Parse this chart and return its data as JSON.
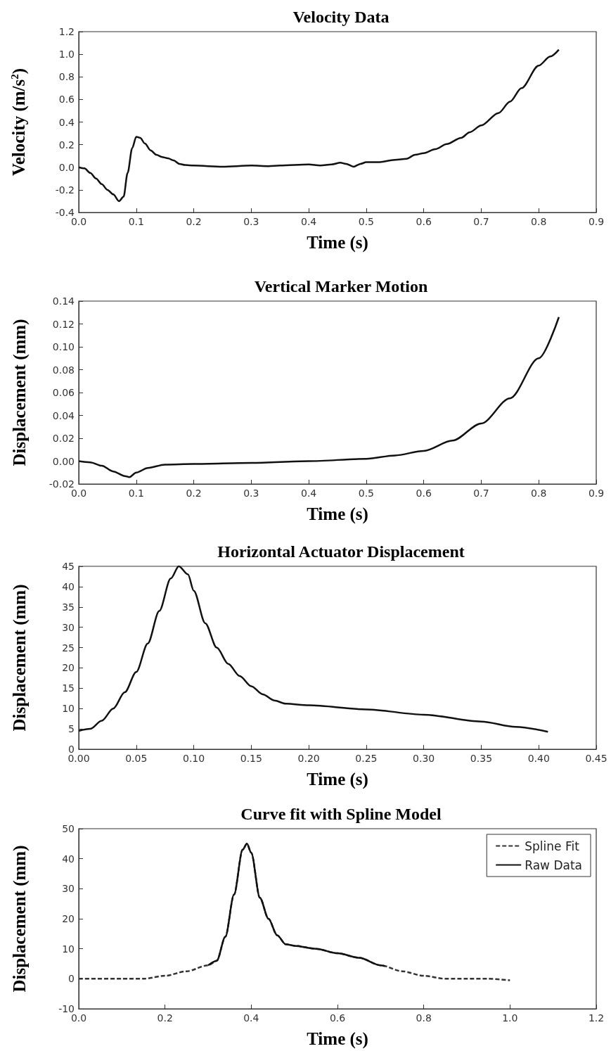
{
  "chart_data": [
    {
      "type": "line",
      "title": "Velocity Data",
      "xlabel": "Time (s)",
      "ylabel": "Velocity (m/s$^{2}$)",
      "color": "#111111",
      "line_style": "solid",
      "marker": "none",
      "x": [
        0,
        0.01,
        0.02,
        0.03,
        0.04,
        0.05,
        0.06,
        0.07,
        0.078,
        0.085,
        0.093,
        0.1,
        0.107,
        0.115,
        0.125,
        0.135,
        0.145,
        0.155,
        0.165,
        0.175,
        0.185,
        0.2,
        0.25,
        0.3,
        0.33,
        0.35,
        0.4,
        0.42,
        0.44,
        0.455,
        0.465,
        0.478,
        0.49,
        0.5,
        0.52,
        0.55,
        0.57,
        0.585,
        0.6,
        0.62,
        0.64,
        0.665,
        0.68,
        0.7,
        0.73,
        0.75,
        0.77,
        0.8,
        0.82,
        0.835
      ],
      "values": [
        0,
        -0.01,
        -0.05,
        -0.1,
        -0.15,
        -0.2,
        -0.24,
        -0.3,
        -0.26,
        -0.05,
        0.17,
        0.27,
        0.26,
        0.21,
        0.15,
        0.11,
        0.09,
        0.08,
        0.06,
        0.03,
        0.02,
        0.015,
        0.005,
        0.015,
        0.01,
        0.015,
        0.025,
        0.015,
        0.025,
        0.04,
        0.03,
        0.005,
        0.03,
        0.045,
        0.045,
        0.065,
        0.075,
        0.11,
        0.125,
        0.16,
        0.205,
        0.26,
        0.31,
        0.37,
        0.48,
        0.58,
        0.7,
        0.9,
        0.98,
        1.04
      ],
      "xlim": [
        0,
        0.9
      ],
      "xticks": [
        {
          "value": 0,
          "label": "0.0"
        },
        0.1,
        0.2,
        0.3,
        0.4,
        0.5,
        0.6,
        0.7,
        0.8,
        0.9
      ],
      "ylim": [
        -0.4,
        1.2
      ],
      "yticks": [
        -0.4,
        -0.2,
        {
          "value": 0,
          "label": "0.0"
        },
        0.2,
        0.4,
        0.6,
        0.8,
        {
          "value": 1,
          "label": "1.0"
        },
        1.2
      ]
    },
    {
      "type": "line",
      "title": "Vertical Marker Motion",
      "xlabel": "Time (s)",
      "ylabel": "Displacement (mm)",
      "color": "#111111",
      "line_style": "solid",
      "marker": "none",
      "x": [
        0,
        0.02,
        0.04,
        0.06,
        0.08,
        0.088,
        0.1,
        0.12,
        0.15,
        0.2,
        0.3,
        0.4,
        0.5,
        0.55,
        0.6,
        0.65,
        0.7,
        0.75,
        0.8,
        0.835
      ],
      "values": [
        0,
        -0.001,
        -0.004,
        -0.009,
        -0.013,
        -0.014,
        -0.01,
        -0.006,
        -0.003,
        -0.0025,
        -0.0015,
        0,
        0.002,
        0.005,
        0.009,
        0.018,
        0.033,
        0.055,
        0.09,
        0.126
      ],
      "xlim": [
        0,
        0.9
      ],
      "xticks": [
        {
          "value": 0,
          "label": "0.0"
        },
        0.1,
        0.2,
        0.3,
        0.4,
        0.5,
        0.6,
        0.7,
        0.8,
        0.9
      ],
      "ylim": [
        -0.02,
        0.14
      ],
      "yticks": [
        -0.02,
        {
          "value": 0,
          "label": "0.00"
        },
        0.02,
        0.04,
        0.06,
        0.08,
        {
          "value": 0.1,
          "label": "0.10"
        },
        0.12,
        0.14
      ]
    },
    {
      "type": "line",
      "title": "Horizontal Actuator Displacement",
      "xlabel": "Time (s)",
      "ylabel": "Displacement (mm)",
      "color": "#111111",
      "line_style": "solid",
      "marker": "none",
      "x": [
        0,
        0.01,
        0.02,
        0.03,
        0.04,
        0.05,
        0.06,
        0.07,
        0.08,
        0.087,
        0.095,
        0.1,
        0.11,
        0.12,
        0.13,
        0.14,
        0.15,
        0.16,
        0.17,
        0.18,
        0.2,
        0.25,
        0.3,
        0.35,
        0.38,
        0.408
      ],
      "values": [
        4.5,
        5,
        7,
        10,
        14,
        19,
        26,
        34,
        42,
        45,
        43,
        39,
        31,
        25,
        21,
        18,
        15.5,
        13.5,
        12,
        11.2,
        10.8,
        9.8,
        8.5,
        6.8,
        5.5,
        4.3
      ],
      "xlim": [
        0,
        0.45
      ],
      "xticks": [
        {
          "value": 0,
          "label": "0.00"
        },
        0.05,
        {
          "value": 0.1,
          "label": "0.10"
        },
        0.15,
        {
          "value": 0.2,
          "label": "0.20"
        },
        0.25,
        {
          "value": 0.3,
          "label": "0.30"
        },
        0.35,
        {
          "value": 0.4,
          "label": "0.40"
        },
        0.45
      ],
      "ylim": [
        0,
        45
      ],
      "yticks": [
        0,
        5,
        10,
        15,
        20,
        25,
        30,
        35,
        40,
        45
      ]
    },
    {
      "type": "line",
      "title": "Curve fit with Spline Model",
      "xlabel": "Time (s)",
      "ylabel": "Displacement (mm)",
      "marker": "none",
      "legend": "top right",
      "series": [
        {
          "name": "Spline Fit",
          "color": "#333333",
          "line_style": "dashed",
          "x": [
            0,
            0.1,
            0.15,
            0.2,
            0.25,
            0.3,
            0.32,
            0.34,
            0.36,
            0.38,
            0.39,
            0.4,
            0.42,
            0.44,
            0.46,
            0.48,
            0.5,
            0.55,
            0.6,
            0.65,
            0.7,
            0.75,
            0.8,
            0.85,
            0.9,
            0.95,
            1.0
          ],
          "values": [
            0,
            0,
            0,
            1,
            2.5,
            4.5,
            6,
            14,
            28,
            43,
            45,
            42,
            27,
            20,
            14.5,
            11.5,
            11,
            10,
            8.5,
            7,
            4.5,
            2.5,
            1,
            0,
            0,
            0,
            -0.5
          ]
        },
        {
          "name": "Raw Data",
          "color": "#111111",
          "line_style": "solid",
          "x": [
            0.3,
            0.32,
            0.34,
            0.36,
            0.38,
            0.39,
            0.4,
            0.42,
            0.44,
            0.46,
            0.48,
            0.5,
            0.55,
            0.6,
            0.65,
            0.7,
            0.71
          ],
          "values": [
            4.5,
            6,
            14,
            28,
            43,
            45,
            42,
            27,
            20,
            14.5,
            11.5,
            11,
            10,
            8.5,
            7,
            4.5,
            4.2
          ]
        }
      ],
      "xlim": [
        0,
        1.2
      ],
      "xticks": [
        {
          "value": 0,
          "label": "0.0"
        },
        0.2,
        0.4,
        0.6,
        0.8,
        {
          "value": 1,
          "label": "1.0"
        },
        1.2
      ],
      "ylim": [
        -10,
        50
      ],
      "yticks": [
        -10,
        0,
        10,
        20,
        30,
        40,
        50
      ]
    }
  ]
}
